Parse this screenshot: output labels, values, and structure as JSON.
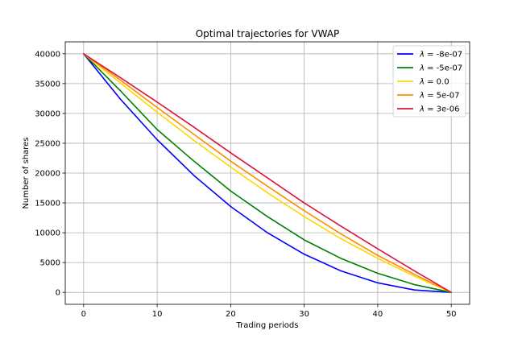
{
  "chart_data": {
    "type": "line",
    "title": "Optimal trajectories for VWAP",
    "xlabel": "Trading periods",
    "ylabel": "Number of shares",
    "xlim": [
      -2.5,
      52.5
    ],
    "ylim": [
      -2000,
      42000
    ],
    "xticks": [
      0,
      10,
      20,
      30,
      40,
      50
    ],
    "yticks": [
      0,
      5000,
      10000,
      15000,
      20000,
      25000,
      30000,
      35000,
      40000
    ],
    "grid": true,
    "legend_position": "top-right",
    "x": [
      0,
      5,
      10,
      15,
      20,
      25,
      30,
      35,
      40,
      45,
      50
    ],
    "series": [
      {
        "name": "λ = -8e-07",
        "legend_value": "-8e-07",
        "color": "#0000ff",
        "values": [
          40000,
          32400,
          25600,
          19600,
          14400,
          10000,
          6400,
          3600,
          1600,
          400,
          0
        ]
      },
      {
        "name": "λ = -5e-07",
        "legend_value": "-5e-07",
        "color": "#008000",
        "values": [
          40000,
          33800,
          27300,
          22000,
          17000,
          12700,
          8800,
          5700,
          3200,
          1300,
          0
        ]
      },
      {
        "name": "λ = 0.0",
        "legend_value": "0.0",
        "color": "#ffd700",
        "values": [
          40000,
          35100,
          30200,
          25500,
          21000,
          16700,
          12700,
          9000,
          5700,
          2700,
          0
        ]
      },
      {
        "name": "λ = 5e-07",
        "legend_value": "5e-07",
        "color": "#ff8c00",
        "values": [
          40000,
          35600,
          31000,
          26500,
          22000,
          17800,
          13700,
          9800,
          6200,
          3000,
          0
        ]
      },
      {
        "name": "λ = 3e-06",
        "legend_value": "3e-06",
        "color": "#dc143c",
        "values": [
          40000,
          36000,
          31900,
          27700,
          23400,
          19200,
          15000,
          11100,
          7300,
          3600,
          0
        ]
      }
    ]
  }
}
